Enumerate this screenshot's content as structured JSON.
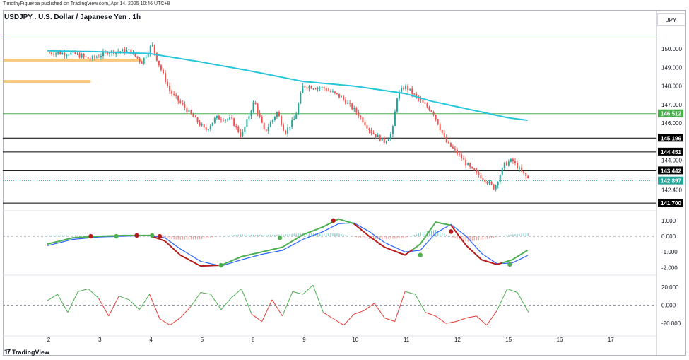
{
  "publisher": "TimothyFigueroa published on TradingView.com, Apr 14, 2025 10:46 UTC+8",
  "title": "USDJPY . U.S. Dollar / Japanese Yen . 1h",
  "currency_button": "JPY",
  "brand": "TradingView",
  "colors": {
    "up": "#26a69a",
    "down": "#ef5350",
    "ma": "#26c6da",
    "supply_zone": "#f7c97e",
    "level_green": "#4caf50",
    "level_black": "#000000",
    "wt_fast": "#4caf50",
    "wt_fast_down": "#b71c1c",
    "wt_slow": "#2962ff",
    "osc_up": "#4caf50",
    "osc_down": "#e53935"
  },
  "chart_data": [
    {
      "type": "candlestick",
      "title": "USDJPY . U.S. Dollar / Japanese Yen . 1h",
      "x_tick_labels": [
        "2",
        "3",
        "4",
        "5",
        "8",
        "9",
        "10",
        "11",
        "12",
        "15",
        "16",
        "17"
      ],
      "y_tick_labels": [
        "150.000",
        "149.000",
        "148.000",
        "147.000",
        "146.000",
        "144.000",
        "142.400"
      ],
      "ylim": [
        141.4,
        151.3
      ],
      "price_anchors": [
        {
          "day": 1.0,
          "price": 149.8
        },
        {
          "day": 1.5,
          "price": 149.75
        },
        {
          "day": 1.85,
          "price": 149.45
        },
        {
          "day": 2.2,
          "price": 149.85
        },
        {
          "day": 2.6,
          "price": 149.9
        },
        {
          "day": 2.85,
          "price": 149.3
        },
        {
          "day": 3.05,
          "price": 150.25
        },
        {
          "day": 3.15,
          "price": 149.4
        },
        {
          "day": 3.4,
          "price": 147.7
        },
        {
          "day": 3.9,
          "price": 146.2
        },
        {
          "day": 4.1,
          "price": 145.6
        },
        {
          "day": 4.3,
          "price": 146.3
        },
        {
          "day": 4.6,
          "price": 146.2
        },
        {
          "day": 4.8,
          "price": 145.3
        },
        {
          "day": 5.05,
          "price": 147.2
        },
        {
          "day": 5.25,
          "price": 145.5
        },
        {
          "day": 5.5,
          "price": 146.6
        },
        {
          "day": 5.65,
          "price": 145.5
        },
        {
          "day": 5.85,
          "price": 146.3
        },
        {
          "day": 6.0,
          "price": 148.0
        },
        {
          "day": 6.4,
          "price": 147.9
        },
        {
          "day": 6.75,
          "price": 147.4
        },
        {
          "day": 7.05,
          "price": 146.6
        },
        {
          "day": 7.35,
          "price": 145.5
        },
        {
          "day": 7.6,
          "price": 145.0
        },
        {
          "day": 7.75,
          "price": 145.5
        },
        {
          "day": 7.85,
          "price": 147.5
        },
        {
          "day": 8.0,
          "price": 148.0
        },
        {
          "day": 8.15,
          "price": 147.6
        },
        {
          "day": 8.3,
          "price": 147.2
        },
        {
          "day": 8.55,
          "price": 146.6
        },
        {
          "day": 8.8,
          "price": 145.0
        },
        {
          "day": 9.05,
          "price": 144.3
        },
        {
          "day": 9.3,
          "price": 143.5
        },
        {
          "day": 9.55,
          "price": 143.0
        },
        {
          "day": 9.75,
          "price": 142.5
        },
        {
          "day": 9.95,
          "price": 143.8
        },
        {
          "day": 10.1,
          "price": 144.0
        },
        {
          "day": 10.3,
          "price": 143.3
        },
        {
          "day": 10.42,
          "price": 143.0
        }
      ],
      "ma_series": {
        "day": [
          1.0,
          2.0,
          3.0,
          4.0,
          5.0,
          6.0,
          7.0,
          7.5,
          8.0,
          8.5,
          9.0,
          9.5,
          10.0,
          10.42
        ],
        "price": [
          149.9,
          149.85,
          149.75,
          149.3,
          148.8,
          148.25,
          148.0,
          147.8,
          147.6,
          147.2,
          146.9,
          146.6,
          146.3,
          146.15
        ]
      },
      "supply_zones": [
        {
          "price": 149.4,
          "day_from": 1.0,
          "day_to": 2.85
        },
        {
          "price": 148.25,
          "day_from": 1.0,
          "day_to": 1.85
        }
      ],
      "levels": [
        {
          "label": "146.512",
          "price": 146.512,
          "color": "#4caf50"
        },
        {
          "label": "145.196",
          "price": 145.196,
          "color": "#000000"
        },
        {
          "label": "144.451",
          "price": 144.451,
          "color": "#000000"
        },
        {
          "label": "143.442",
          "price": 143.442,
          "color": "#000000"
        },
        {
          "label": "141.700",
          "price": 141.7,
          "color": "#000000"
        },
        {
          "price": 150.75,
          "color": "#4caf50"
        }
      ],
      "last_price": {
        "label": "142.897",
        "price": 142.897
      }
    },
    {
      "type": "line",
      "name": "wave trend",
      "y_tick_labels": [
        "1.000",
        "0.000",
        "-1.000",
        "-2.000"
      ],
      "ylim": [
        -2.3,
        1.4
      ],
      "fast": {
        "day": [
          1.0,
          1.5,
          2.0,
          2.5,
          3.0,
          3.3,
          3.6,
          4.0,
          4.4,
          4.8,
          5.2,
          5.6,
          6.0,
          6.4,
          6.7,
          7.0,
          7.3,
          7.6,
          8.0,
          8.3,
          8.6,
          8.9,
          9.2,
          9.5,
          9.8,
          10.1,
          10.42
        ],
        "value": [
          -0.5,
          -0.1,
          0.0,
          0.05,
          0.05,
          -0.3,
          -1.2,
          -1.9,
          -1.85,
          -1.3,
          -1.0,
          -0.7,
          0.1,
          0.6,
          1.1,
          0.8,
          0.0,
          -0.7,
          -1.2,
          -0.5,
          0.9,
          0.7,
          -0.6,
          -1.5,
          -1.8,
          -1.5,
          -0.85
        ]
      },
      "slow": {
        "day": [
          1.0,
          1.5,
          2.0,
          2.5,
          3.0,
          3.3,
          3.6,
          4.0,
          4.4,
          4.8,
          5.2,
          5.6,
          6.0,
          6.4,
          6.7,
          7.0,
          7.3,
          7.6,
          8.0,
          8.3,
          8.6,
          8.9,
          9.2,
          9.5,
          9.8,
          10.1,
          10.42
        ],
        "value": [
          -0.6,
          -0.2,
          -0.05,
          0.0,
          0.05,
          -0.1,
          -0.8,
          -1.6,
          -1.9,
          -1.5,
          -1.15,
          -0.9,
          -0.2,
          0.3,
          0.8,
          0.85,
          0.3,
          -0.4,
          -1.0,
          -0.9,
          0.2,
          0.75,
          0.0,
          -1.1,
          -1.75,
          -1.7,
          -1.2
        ]
      },
      "cross_dots": [
        {
          "day": 1.85,
          "value": 0.0,
          "color": "#b71c1c"
        },
        {
          "day": 2.35,
          "value": 0.0,
          "color": "#4caf50"
        },
        {
          "day": 2.75,
          "value": 0.05,
          "color": "#b71c1c"
        },
        {
          "day": 3.05,
          "value": 0.05,
          "color": "#4caf50"
        },
        {
          "day": 3.2,
          "value": 0.0,
          "color": "#b71c1c"
        },
        {
          "day": 4.4,
          "value": -1.85,
          "color": "#4caf50"
        },
        {
          "day": 5.55,
          "value": -0.1,
          "color": "#4caf50"
        },
        {
          "day": 6.6,
          "value": 1.0,
          "color": "#b71c1c"
        },
        {
          "day": 8.3,
          "value": -1.2,
          "color": "#4caf50"
        },
        {
          "day": 8.9,
          "value": 0.3,
          "color": "#b71c1c"
        },
        {
          "day": 10.05,
          "value": -1.8,
          "color": "#4caf50"
        }
      ]
    },
    {
      "type": "line",
      "name": "oscillator",
      "y_tick_labels": [
        "20.000",
        "0.000",
        "-20.000"
      ],
      "ylim": [
        -30,
        30
      ],
      "day": [
        1.0,
        1.2,
        1.4,
        1.6,
        1.8,
        2.0,
        2.2,
        2.4,
        2.6,
        2.8,
        3.0,
        3.2,
        3.4,
        3.6,
        3.8,
        4.0,
        4.2,
        4.4,
        4.6,
        4.8,
        5.0,
        5.2,
        5.4,
        5.6,
        5.8,
        6.0,
        6.2,
        6.4,
        6.6,
        6.8,
        7.0,
        7.2,
        7.4,
        7.6,
        7.8,
        8.0,
        8.2,
        8.4,
        8.6,
        8.8,
        9.0,
        9.2,
        9.4,
        9.6,
        9.8,
        10.0,
        10.2,
        10.42
      ],
      "value": [
        5,
        12,
        -8,
        15,
        18,
        8,
        -12,
        10,
        6,
        -5,
        12,
        -15,
        -22,
        -14,
        -2,
        14,
        12,
        -5,
        8,
        18,
        -10,
        -18,
        6,
        -12,
        15,
        12,
        22,
        -8,
        -15,
        -22,
        -10,
        -6,
        2,
        -14,
        -18,
        15,
        12,
        -8,
        -12,
        -20,
        -18,
        -14,
        -12,
        -22,
        -6,
        18,
        14,
        -8
      ]
    }
  ]
}
